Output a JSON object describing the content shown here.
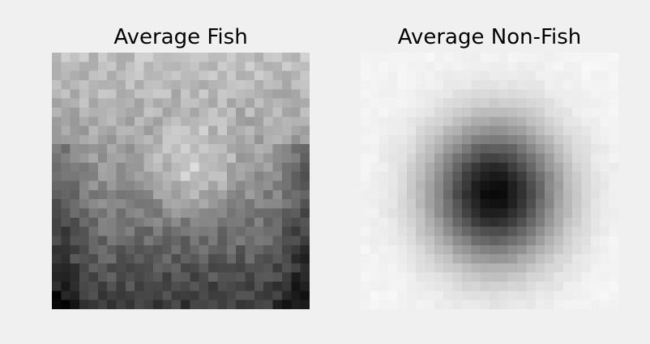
{
  "figure": {
    "background": "#f0f0f0",
    "colormap": "gray",
    "panels": [
      {
        "id": "fish",
        "title": "Average Fish"
      },
      {
        "id": "nonfish",
        "title": "Average Non-Fish"
      }
    ]
  }
}
